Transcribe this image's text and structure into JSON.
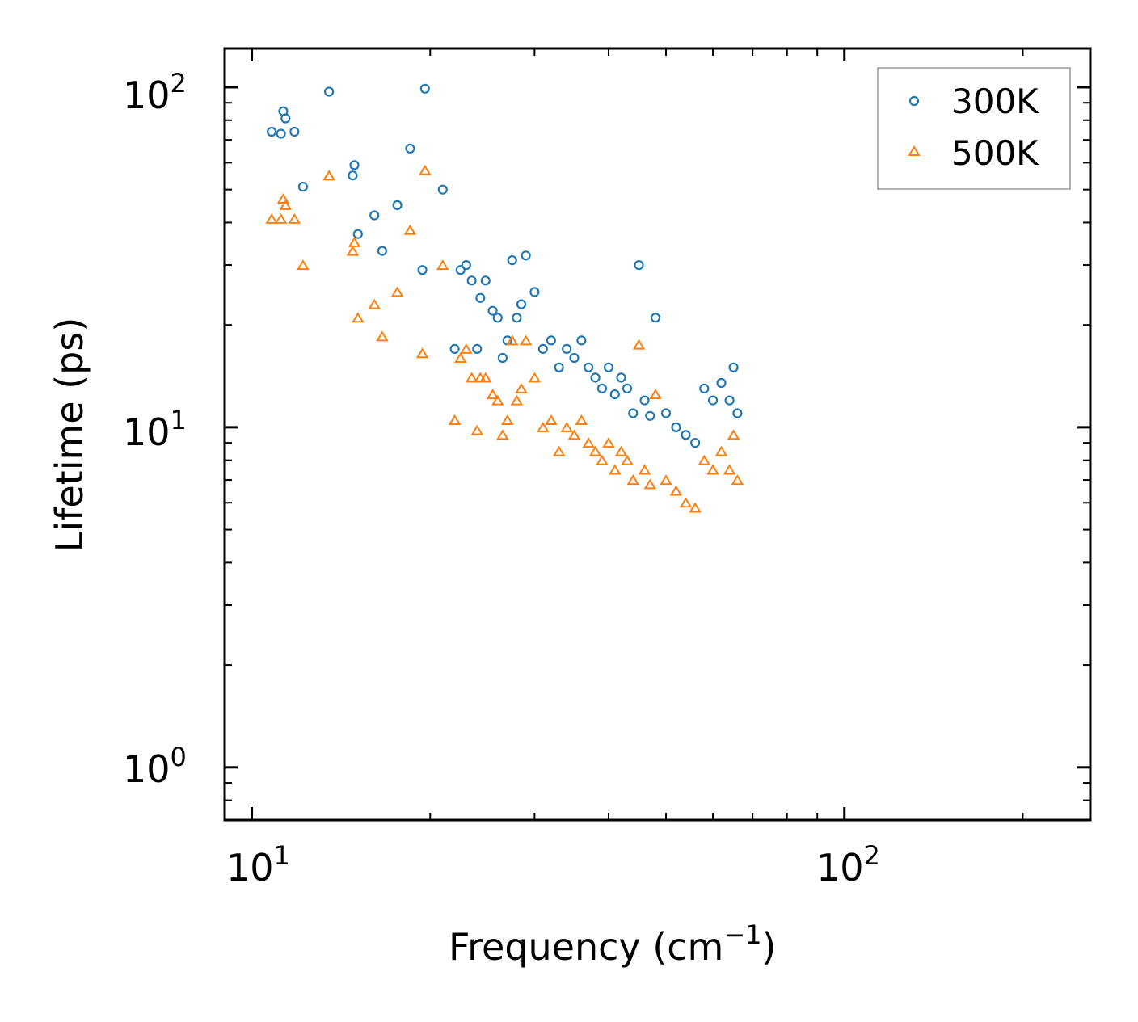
{
  "chart_data": {
    "type": "scatter",
    "x_scale": "log",
    "y_scale": "log",
    "xlim": [
      9.0,
      260
    ],
    "ylim": [
      0.7,
      130
    ],
    "xlabel": "Frequency (cm",
    "xlabel_sup": "−1",
    "xlabel_end": ")",
    "ylabel": "Lifetime (ps)",
    "grid": false,
    "legend_position": "top-right",
    "x_ticks": [
      {
        "base": "10",
        "exp": "1",
        "value": 10
      },
      {
        "base": "10",
        "exp": "2",
        "value": 100
      }
    ],
    "y_ticks": [
      {
        "base": "10",
        "exp": "0",
        "value": 1
      },
      {
        "base": "10",
        "exp": "1",
        "value": 10
      },
      {
        "base": "10",
        "exp": "2",
        "value": 100
      }
    ],
    "series": [
      {
        "name": "300K",
        "marker": "circle",
        "color": "#1f77b4",
        "points": [
          [
            10.8,
            74
          ],
          [
            11.3,
            85
          ],
          [
            11.4,
            81
          ],
          [
            11.2,
            73
          ],
          [
            11.8,
            74
          ],
          [
            12.2,
            51
          ],
          [
            13.5,
            97
          ],
          [
            14.8,
            55
          ],
          [
            14.9,
            59
          ],
          [
            15.1,
            37
          ],
          [
            16.1,
            42
          ],
          [
            16.6,
            33
          ],
          [
            17.6,
            45
          ],
          [
            18.5,
            66
          ],
          [
            19.4,
            29
          ],
          [
            19.6,
            99
          ],
          [
            21,
            50
          ],
          [
            22,
            17
          ],
          [
            22.5,
            29
          ],
          [
            23,
            30
          ],
          [
            23.5,
            27
          ],
          [
            24,
            17
          ],
          [
            24.3,
            24
          ],
          [
            24.8,
            27
          ],
          [
            25.5,
            22
          ],
          [
            26,
            21
          ],
          [
            26.5,
            16
          ],
          [
            27,
            18
          ],
          [
            27.5,
            31
          ],
          [
            28,
            21
          ],
          [
            28.5,
            23
          ],
          [
            29,
            32
          ],
          [
            30,
            25
          ],
          [
            31,
            17
          ],
          [
            32,
            18
          ],
          [
            33,
            15
          ],
          [
            34,
            17
          ],
          [
            35,
            16
          ],
          [
            36,
            18
          ],
          [
            37,
            15
          ],
          [
            38,
            14
          ],
          [
            39,
            13
          ],
          [
            40,
            15
          ],
          [
            41,
            12.5
          ],
          [
            42,
            14
          ],
          [
            43,
            13
          ],
          [
            44,
            11
          ],
          [
            45,
            30
          ],
          [
            46,
            12
          ],
          [
            47,
            10.8
          ],
          [
            48,
            21
          ],
          [
            50,
            11
          ],
          [
            52,
            10
          ],
          [
            54,
            9.5
          ],
          [
            56,
            9
          ],
          [
            58,
            13
          ],
          [
            60,
            12
          ],
          [
            62,
            13.5
          ],
          [
            64,
            12
          ],
          [
            65,
            15
          ],
          [
            66,
            11
          ]
        ]
      },
      {
        "name": "500K",
        "marker": "triangle",
        "color": "#ff7f0e",
        "points": [
          [
            10.8,
            41
          ],
          [
            11.2,
            41
          ],
          [
            11.3,
            47
          ],
          [
            11.4,
            45
          ],
          [
            11.8,
            41
          ],
          [
            12.2,
            30
          ],
          [
            13.5,
            55
          ],
          [
            14.8,
            33
          ],
          [
            14.9,
            35
          ],
          [
            15.1,
            21
          ],
          [
            16.1,
            23
          ],
          [
            16.6,
            18.5
          ],
          [
            17.6,
            25
          ],
          [
            18.5,
            38
          ],
          [
            19.4,
            16.5
          ],
          [
            19.6,
            57
          ],
          [
            21,
            30
          ],
          [
            22,
            10.5
          ],
          [
            22.5,
            16
          ],
          [
            23,
            17
          ],
          [
            23.5,
            14
          ],
          [
            24,
            9.8
          ],
          [
            24.3,
            14
          ],
          [
            24.8,
            14
          ],
          [
            25.5,
            12.5
          ],
          [
            26,
            12
          ],
          [
            26.5,
            9.5
          ],
          [
            27,
            10.5
          ],
          [
            27.5,
            18
          ],
          [
            28,
            12
          ],
          [
            28.5,
            13
          ],
          [
            29,
            18
          ],
          [
            30,
            14
          ],
          [
            31,
            10
          ],
          [
            32,
            10.5
          ],
          [
            33,
            8.5
          ],
          [
            34,
            10
          ],
          [
            35,
            9.5
          ],
          [
            36,
            10.5
          ],
          [
            37,
            9
          ],
          [
            38,
            8.5
          ],
          [
            39,
            8
          ],
          [
            40,
            9
          ],
          [
            41,
            7.5
          ],
          [
            42,
            8.5
          ],
          [
            43,
            8
          ],
          [
            44,
            7
          ],
          [
            45,
            17.5
          ],
          [
            46,
            7.5
          ],
          [
            47,
            6.8
          ],
          [
            48,
            12.5
          ],
          [
            50,
            7
          ],
          [
            52,
            6.5
          ],
          [
            54,
            6
          ],
          [
            56,
            5.8
          ],
          [
            58,
            8
          ],
          [
            60,
            7.5
          ],
          [
            62,
            8.5
          ],
          [
            64,
            7.5
          ],
          [
            65,
            9.5
          ],
          [
            66,
            7
          ]
        ]
      }
    ]
  }
}
